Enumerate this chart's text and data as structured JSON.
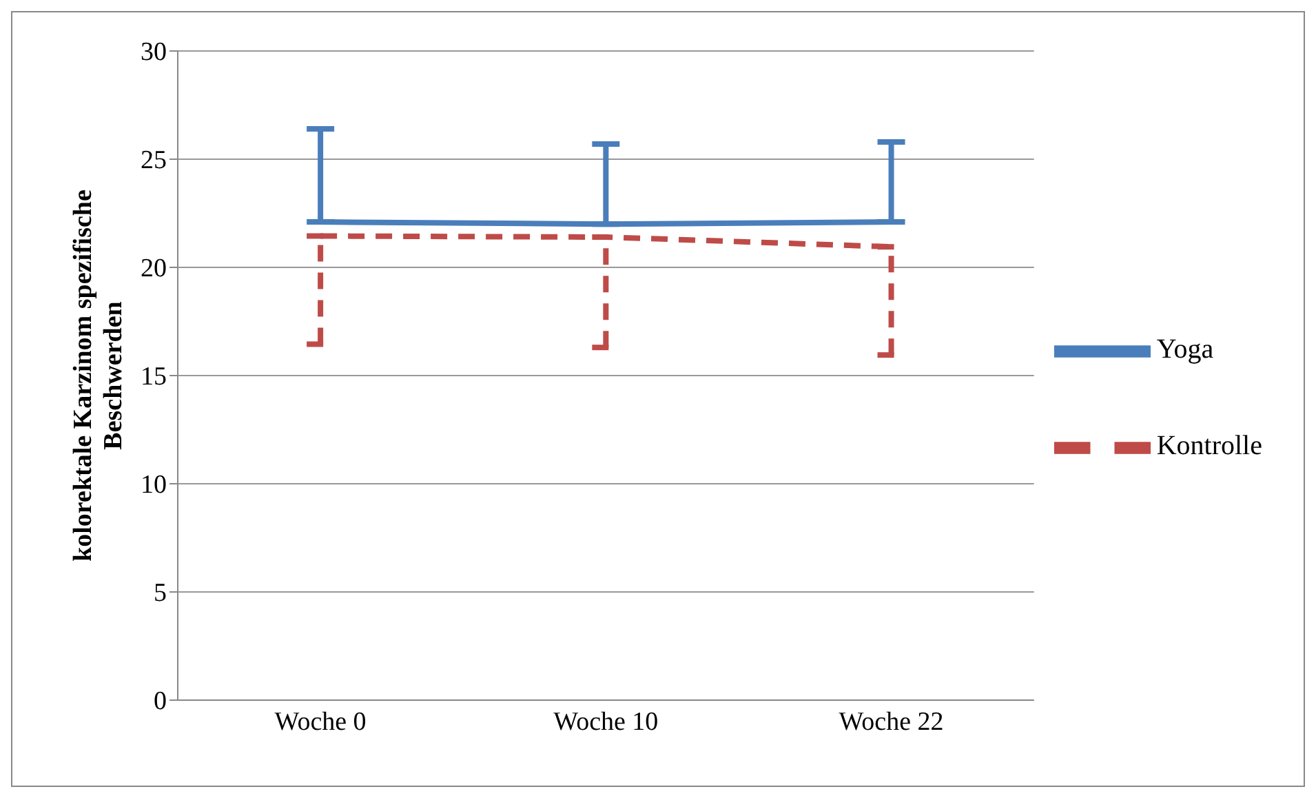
{
  "chart_data": {
    "type": "line",
    "ylabel": "kolorektale Karzinom spezifische Beschwerden",
    "categories": [
      "Woche 0",
      "Woche 10",
      "Woche 22"
    ],
    "series": [
      {
        "name": "Yoga",
        "color": "#4a7ebb",
        "line_style": "solid",
        "values": [
          22.1,
          22.0,
          22.1
        ],
        "errors": [
          [
            22.1,
            26.4
          ],
          [
            22.0,
            25.7
          ],
          [
            22.1,
            25.8
          ]
        ]
      },
      {
        "name": "Kontrolle",
        "color": "#be4b48",
        "line_style": "dashed",
        "values": [
          21.45,
          21.4,
          20.95
        ],
        "errors": [
          [
            16.45,
            21.45
          ],
          [
            16.3,
            21.4
          ],
          [
            15.95,
            20.95
          ]
        ]
      }
    ],
    "ylim": [
      0,
      30
    ],
    "yticks": [
      0,
      5,
      10,
      15,
      20,
      25,
      30
    ],
    "grid": "y",
    "legend": "right",
    "marker": "none"
  }
}
